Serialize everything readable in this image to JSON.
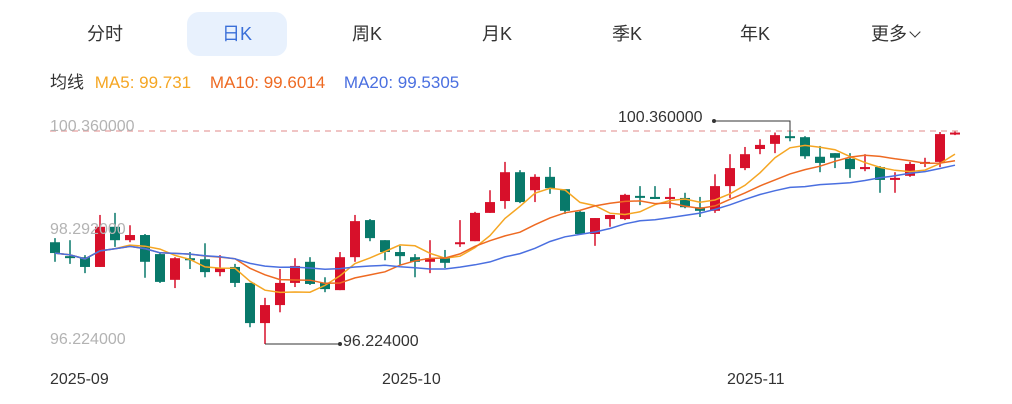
{
  "tabs": [
    {
      "label": "分时",
      "active": false
    },
    {
      "label": "日K",
      "active": true
    },
    {
      "label": "周K",
      "active": false
    },
    {
      "label": "月K",
      "active": false
    },
    {
      "label": "季K",
      "active": false
    },
    {
      "label": "年K",
      "active": false
    },
    {
      "label": "更多",
      "active": false,
      "icon": "chevron-down-icon"
    }
  ],
  "legend": {
    "title": "均线",
    "ma5": "MA5: 99.731",
    "ma10": "MA10: 99.6014",
    "ma20": "MA20: 99.5305"
  },
  "colors": {
    "up": "#d7102a",
    "down": "#08796a",
    "ma5": "#f5a623",
    "ma10": "#ee6a22",
    "ma20": "#4a6fe0",
    "active_tab_bg": "#e8f1fd",
    "active_tab_text": "#3a6fd8",
    "max_line": "#e8a0a0"
  },
  "chart_data": {
    "type": "candlestick",
    "ylim": [
      96.224,
      100.36
    ],
    "y_tick_labels": [
      "100.360000",
      "98.292000",
      "96.224000"
    ],
    "x_tick_labels": [
      "2025-09",
      "2025-10",
      "2025-11"
    ],
    "max_label": "100.360000",
    "min_label": "96.224000",
    "grid": false,
    "ohlc": [
      [
        98.2,
        98.28,
        97.82,
        97.99
      ],
      [
        97.93,
        98.24,
        97.78,
        97.92
      ],
      [
        97.91,
        97.95,
        97.6,
        97.72
      ],
      [
        97.72,
        98.73,
        97.72,
        98.5
      ],
      [
        98.5,
        98.77,
        98.11,
        98.24
      ],
      [
        98.24,
        98.53,
        98.2,
        98.34
      ],
      [
        98.34,
        98.36,
        97.51,
        97.82
      ],
      [
        97.97,
        98.01,
        97.41,
        97.43
      ],
      [
        97.47,
        97.91,
        97.31,
        97.89
      ],
      [
        97.89,
        98.01,
        97.68,
        97.85
      ],
      [
        97.87,
        98.18,
        97.52,
        97.62
      ],
      [
        97.62,
        97.95,
        97.54,
        97.7
      ],
      [
        97.72,
        97.78,
        97.33,
        97.41
      ],
      [
        97.41,
        97.41,
        96.55,
        96.63
      ],
      [
        96.63,
        97.12,
        96.224,
        96.98
      ],
      [
        96.98,
        97.68,
        96.84,
        97.41
      ],
      [
        97.41,
        97.89,
        97.33,
        97.74
      ],
      [
        97.82,
        97.91,
        97.37,
        97.39
      ],
      [
        97.41,
        97.52,
        97.23,
        97.29
      ],
      [
        97.27,
        98.01,
        97.27,
        97.91
      ],
      [
        97.91,
        98.73,
        97.82,
        98.61
      ],
      [
        98.63,
        98.65,
        98.22,
        98.28
      ],
      [
        98.24,
        98.24,
        97.85,
        98.01
      ],
      [
        98.01,
        98.13,
        97.76,
        97.93
      ],
      [
        97.91,
        97.97,
        97.52,
        97.82
      ],
      [
        97.82,
        98.24,
        97.6,
        97.89
      ],
      [
        97.89,
        98.05,
        97.7,
        97.8
      ],
      [
        98.18,
        98.63,
        98.11,
        98.2
      ],
      [
        98.22,
        98.79,
        98.22,
        98.77
      ],
      [
        98.77,
        99.21,
        98.77,
        98.98
      ],
      [
        99.0,
        99.76,
        98.85,
        99.56
      ],
      [
        99.56,
        99.6,
        98.96,
        98.98
      ],
      [
        99.21,
        99.52,
        98.98,
        99.47
      ],
      [
        99.47,
        99.66,
        99.14,
        99.25
      ],
      [
        99.23,
        99.23,
        98.75,
        98.81
      ],
      [
        98.79,
        98.81,
        98.36,
        98.36
      ],
      [
        98.36,
        98.67,
        98.13,
        98.67
      ],
      [
        98.65,
        98.73,
        98.5,
        98.73
      ],
      [
        98.65,
        99.14,
        98.63,
        99.12
      ],
      [
        99.1,
        99.29,
        98.92,
        99.08
      ],
      [
        99.08,
        99.29,
        99.04,
        99.04
      ],
      [
        99.04,
        99.25,
        98.86,
        99.08
      ],
      [
        99.06,
        99.16,
        98.86,
        98.88
      ],
      [
        98.88,
        99.08,
        98.69,
        98.81
      ],
      [
        98.81,
        99.52,
        98.77,
        99.29
      ],
      [
        99.29,
        99.91,
        99.06,
        99.64
      ],
      [
        99.64,
        100.05,
        99.6,
        99.91
      ],
      [
        100.01,
        100.2,
        99.91,
        100.09
      ],
      [
        100.11,
        100.33,
        99.93,
        100.28
      ],
      [
        100.26,
        100.36,
        100.16,
        100.25
      ],
      [
        100.24,
        100.26,
        99.82,
        99.87
      ],
      [
        99.86,
        100.07,
        99.56,
        99.74
      ],
      [
        99.93,
        99.93,
        99.64,
        99.84
      ],
      [
        99.82,
        99.93,
        99.45,
        99.62
      ],
      [
        99.62,
        99.91,
        99.58,
        99.66
      ],
      [
        99.66,
        99.68,
        99.16,
        99.41
      ],
      [
        99.41,
        99.56,
        99.16,
        99.45
      ],
      [
        99.49,
        99.76,
        99.47,
        99.72
      ],
      [
        99.74,
        99.84,
        99.66,
        99.76
      ],
      [
        99.76,
        100.34,
        99.66,
        100.3
      ],
      [
        100.3,
        100.35,
        100.28,
        100.33
      ]
    ]
  }
}
